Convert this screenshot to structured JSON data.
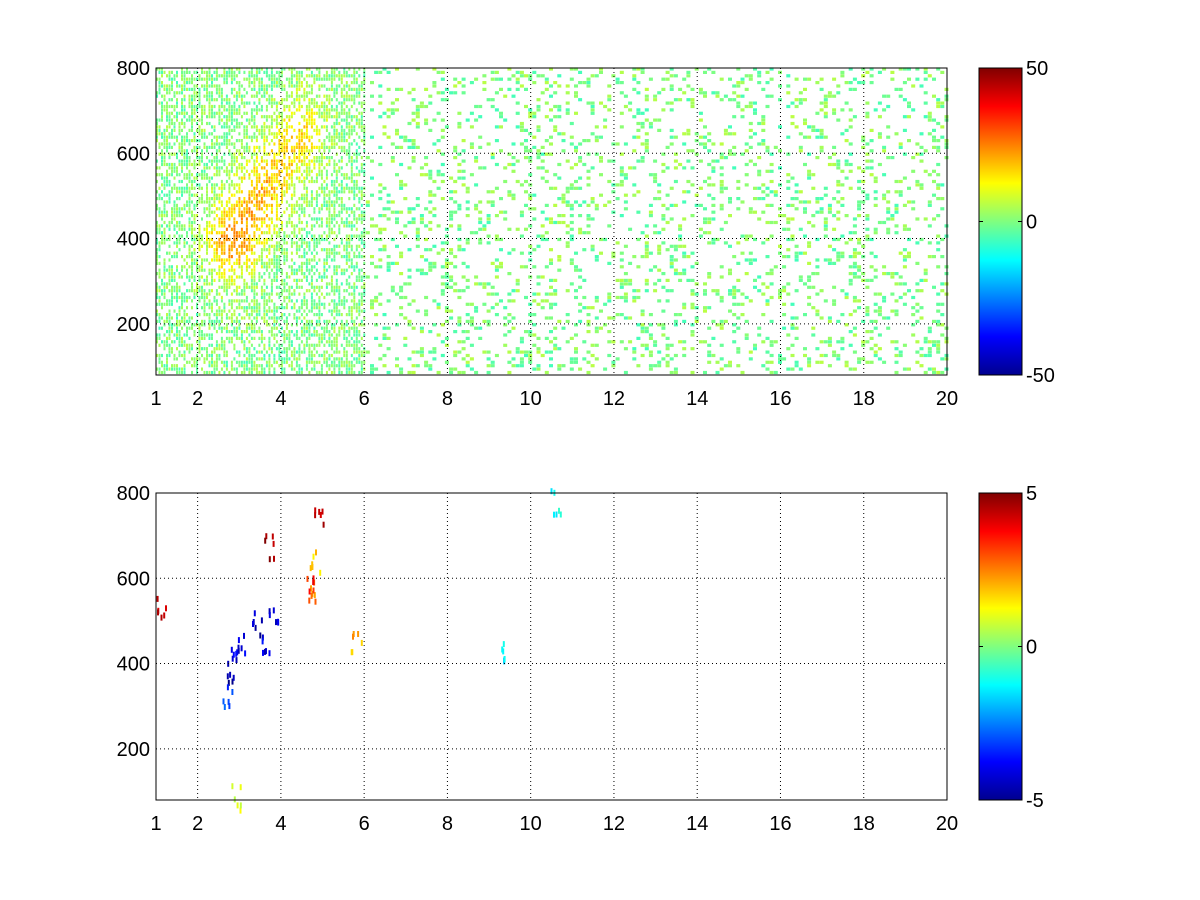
{
  "chart_data": [
    {
      "type": "heatmap",
      "title": "",
      "xlabel": "",
      "ylabel": "",
      "xlim": [
        1,
        20
      ],
      "ylim": [
        80,
        800
      ],
      "xticks": [
        1,
        2,
        4,
        6,
        8,
        10,
        12,
        14,
        16,
        18,
        20
      ],
      "xtick_labels": [
        "1",
        "2",
        "4",
        "6",
        "8",
        "10",
        "12",
        "14",
        "16",
        "18",
        "20"
      ],
      "yticks": [
        200,
        400,
        600,
        800
      ],
      "ytick_labels": [
        "200",
        "400",
        "600",
        "800"
      ],
      "grid": true,
      "colormap": "jet",
      "colorbar": {
        "range": [
          -50,
          50
        ],
        "ticks": [
          -50,
          0,
          50
        ],
        "tick_labels": [
          "-50",
          "0",
          "50"
        ]
      },
      "hotspots": [
        {
          "x": 2.8,
          "y": 390,
          "value": 22
        },
        {
          "x": 3.4,
          "y": 480,
          "value": 15
        },
        {
          "x": 3.9,
          "y": 560,
          "value": 12
        },
        {
          "x": 4.5,
          "y": 650,
          "value": 13
        }
      ]
    },
    {
      "type": "heatmap",
      "title": "",
      "xlabel": "",
      "ylabel": "",
      "xlim": [
        1,
        20
      ],
      "ylim": [
        80,
        800
      ],
      "xticks": [
        1,
        2,
        4,
        6,
        8,
        10,
        12,
        14,
        16,
        18,
        20
      ],
      "xtick_labels": [
        "1",
        "2",
        "4",
        "6",
        "8",
        "10",
        "12",
        "14",
        "16",
        "18",
        "20"
      ],
      "yticks": [
        200,
        400,
        600,
        800
      ],
      "ytick_labels": [
        "200",
        "400",
        "600",
        "800"
      ],
      "grid": true,
      "colormap": "jet",
      "colorbar": {
        "range": [
          -5,
          5
        ],
        "ticks": [
          -5,
          0,
          5
        ],
        "tick_labels": [
          "-5",
          "0",
          "5"
        ]
      },
      "points": [
        {
          "x": 2.8,
          "y": 380,
          "value": -4.8
        },
        {
          "x": 2.9,
          "y": 420,
          "value": -4.2
        },
        {
          "x": 3.0,
          "y": 450,
          "value": -3.8
        },
        {
          "x": 3.4,
          "y": 500,
          "value": -4.5
        },
        {
          "x": 3.6,
          "y": 460,
          "value": -4.0
        },
        {
          "x": 3.8,
          "y": 520,
          "value": -4.3
        },
        {
          "x": 2.7,
          "y": 330,
          "value": -3.0
        },
        {
          "x": 4.7,
          "y": 560,
          "value": 2.5
        },
        {
          "x": 4.7,
          "y": 590,
          "value": 3.5
        },
        {
          "x": 4.8,
          "y": 640,
          "value": 1.8
        },
        {
          "x": 4.9,
          "y": 740,
          "value": 4.5
        },
        {
          "x": 3.7,
          "y": 680,
          "value": 4.8
        },
        {
          "x": 5.8,
          "y": 450,
          "value": 2.0
        },
        {
          "x": 9.4,
          "y": 440,
          "value": -1.5
        },
        {
          "x": 10.6,
          "y": 785,
          "value": -1.2
        },
        {
          "x": 2.9,
          "y": 90,
          "value": 0.8
        },
        {
          "x": 1.1,
          "y": 540,
          "value": 4.2
        }
      ]
    }
  ]
}
